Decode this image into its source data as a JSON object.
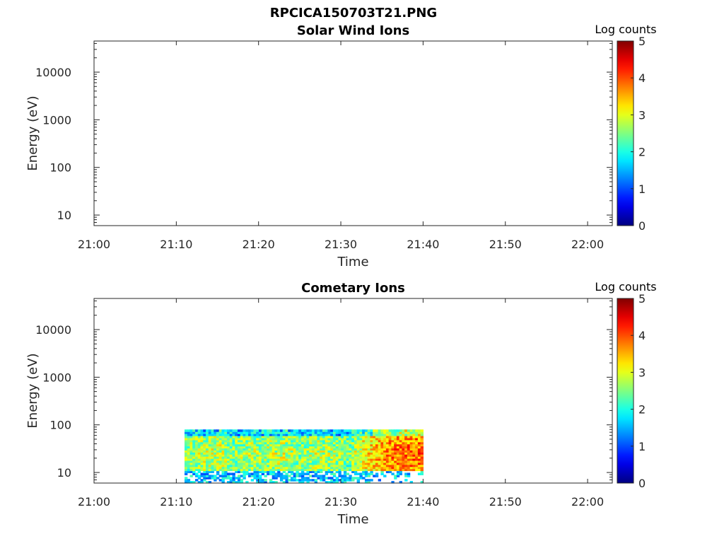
{
  "figure": {
    "title": "RPCICA150703T21.PNG"
  },
  "chart_data": [
    {
      "type": "heatmap",
      "title": "Solar Wind Ions",
      "xlabel": "Time",
      "ylabel": "Energy (eV)",
      "x_ticks": [
        "21:00",
        "21:10",
        "21:20",
        "21:30",
        "21:40",
        "21:50",
        "22:00"
      ],
      "x_range_minutes": [
        0,
        63
      ],
      "y_scale": "log",
      "y_ticks": [
        10,
        100,
        1000,
        10000
      ],
      "y_tick_labels": [
        "10",
        "100",
        "1000",
        "10000"
      ],
      "y_range": [
        6,
        45000
      ],
      "colorbar": {
        "label": "Log counts",
        "range": [
          0,
          5
        ],
        "ticks": [
          "0",
          "1",
          "2",
          "3",
          "4",
          "5"
        ],
        "colormap": "jet"
      },
      "data": {
        "description_free": true,
        "t_start_min": null,
        "t_end_min": null,
        "cells": []
      }
    },
    {
      "type": "heatmap",
      "title": "Cometary Ions",
      "xlabel": "Time",
      "ylabel": "Energy (eV)",
      "x_ticks": [
        "21:00",
        "21:10",
        "21:20",
        "21:30",
        "21:40",
        "21:50",
        "22:00"
      ],
      "x_range_minutes": [
        0,
        63
      ],
      "y_scale": "log",
      "y_ticks": [
        10,
        100,
        1000,
        10000
      ],
      "y_tick_labels": [
        "10",
        "100",
        "1000",
        "10000"
      ],
      "y_range": [
        6,
        45000
      ],
      "colorbar": {
        "label": "Log counts",
        "range": [
          0,
          5
        ],
        "ticks": [
          "0",
          "1",
          "2",
          "3",
          "4",
          "5"
        ],
        "colormap": "jet"
      },
      "data": {
        "t_start_min": 11,
        "t_end_min": 40,
        "e_min": 6,
        "e_max": 80,
        "level_by_minute": [
          [
            11,
            2.6
          ],
          [
            13,
            2.8
          ],
          [
            15,
            2.9
          ],
          [
            17,
            2.6
          ],
          [
            19,
            2.8
          ],
          [
            21,
            2.7
          ],
          [
            23,
            2.9
          ],
          [
            25,
            2.6
          ],
          [
            27,
            2.8
          ],
          [
            29,
            2.7
          ],
          [
            31,
            2.5
          ],
          [
            33,
            3.2
          ],
          [
            35,
            3.6
          ],
          [
            37,
            3.8
          ],
          [
            39,
            3.9
          ]
        ],
        "low_energy_dropout_eV": [
          6,
          12
        ],
        "high_level_range_minutes": [
          33,
          40
        ]
      }
    }
  ]
}
